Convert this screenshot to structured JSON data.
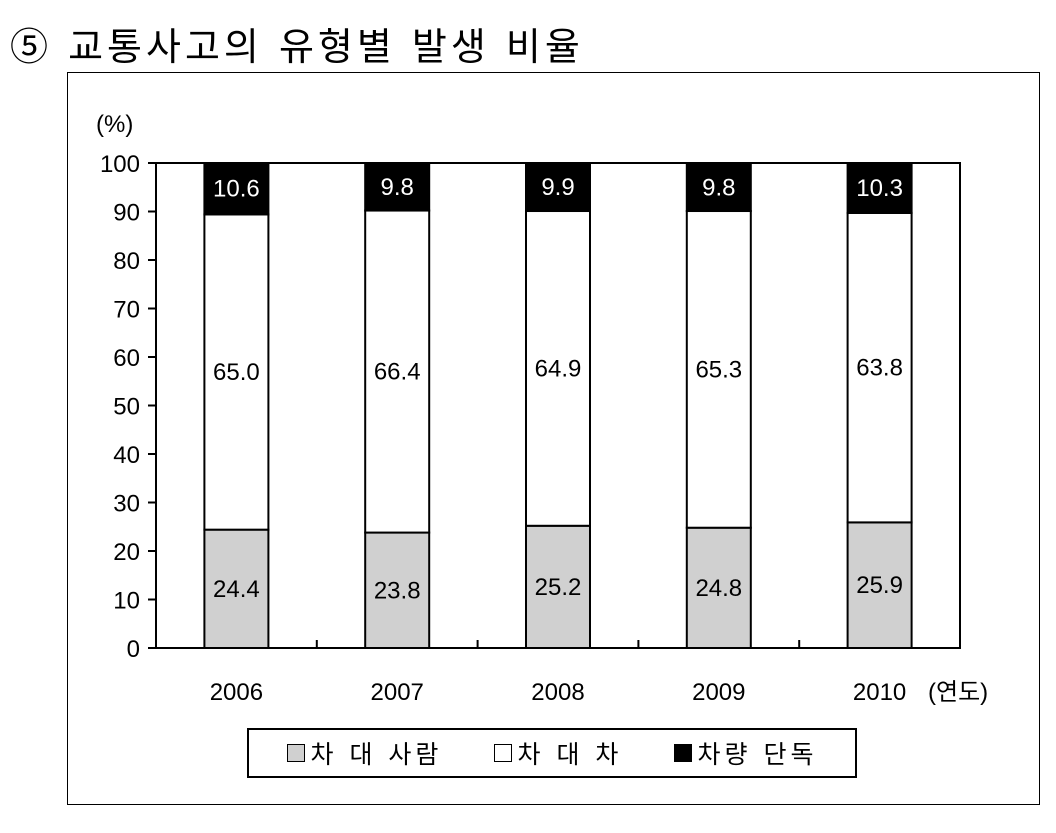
{
  "title": "⑤ 교통사고의 유형별 발생 비율",
  "chart_data": {
    "type": "bar",
    "stacked": true,
    "categories": [
      "2006",
      "2007",
      "2008",
      "2009",
      "2010"
    ],
    "series": [
      {
        "name": "차 대 사람",
        "color": "#d0d0d0",
        "values": [
          24.4,
          23.8,
          25.2,
          24.8,
          25.9
        ]
      },
      {
        "name": "차 대 차",
        "color": "#ffffff",
        "values": [
          65.0,
          66.4,
          64.9,
          65.3,
          63.8
        ]
      },
      {
        "name": "차량 단독",
        "color": "#000000",
        "values": [
          10.6,
          9.8,
          9.9,
          9.8,
          10.3
        ]
      }
    ],
    "data_labels": [
      [
        "24.4",
        "23.8",
        "25.2",
        "24.8",
        "25.9"
      ],
      [
        "65.0",
        "66.4",
        "64.9",
        "65.3",
        "63.8"
      ],
      [
        "10.6",
        "9.8",
        "9.9",
        "9.8",
        "10.3"
      ]
    ],
    "ylabel": "(%)",
    "xlabel": "(연도)",
    "ylim": [
      0,
      100
    ],
    "yticks": [
      "0",
      "10",
      "20",
      "30",
      "40",
      "50",
      "60",
      "70",
      "80",
      "90",
      "100"
    ],
    "grid": false,
    "legend": "bottom"
  }
}
